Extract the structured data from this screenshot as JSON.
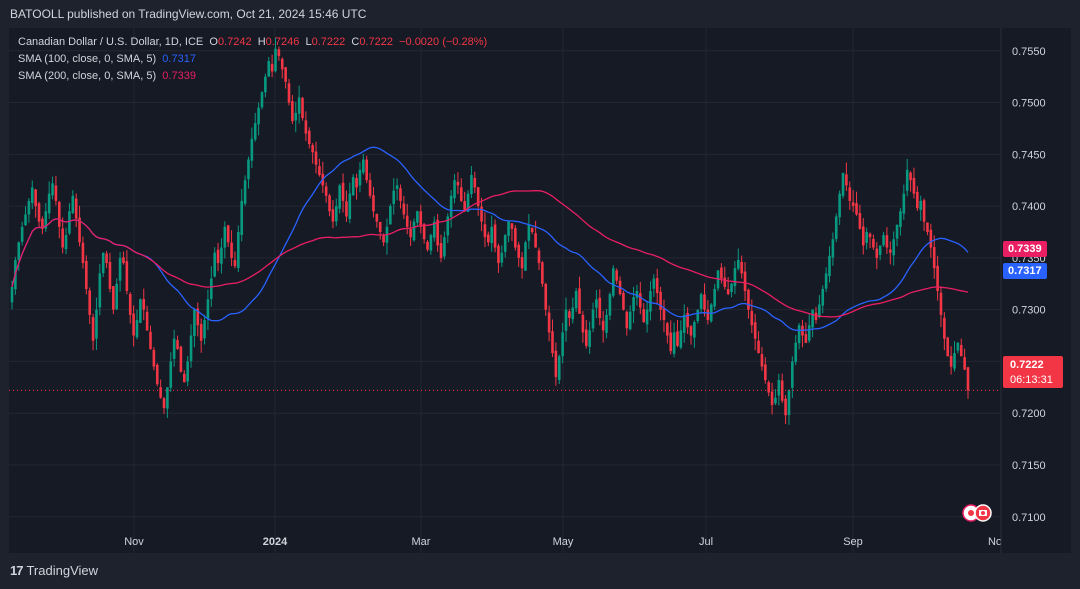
{
  "header": {
    "publisher_text": "BATOOLL published on TradingView.com, Oct 21, 2024 15:46 UTC"
  },
  "legend": {
    "symbol": "Canadian Dollar / U.S. Dollar, 1D, ICE",
    "o_label": "O",
    "o_value": "0.7242",
    "h_label": "H",
    "h_value": "0.7246",
    "l_label": "L",
    "l_value": "0.7222",
    "c_label": "C",
    "c_value": "0.7222",
    "change": "−0.0020 (−0.28%)",
    "sma100_label": "SMA (100, close, 0, SMA, 5)",
    "sma100_value": "0.7317",
    "sma200_label": "SMA (200, close, 0, SMA, 5)",
    "sma200_value": "0.7339"
  },
  "badges": {
    "sma200": "0.7339",
    "sma100": "0.7317",
    "current_price": "0.7222",
    "countdown": "06:13:31"
  },
  "footer": {
    "logo_text": "TradingView"
  },
  "colors": {
    "up": "#089981",
    "down": "#f23645",
    "sma100": "#2962ff",
    "sma200": "#e91e63",
    "background": "#161a25"
  },
  "chart_data": {
    "type": "candlestick",
    "interval": "1D",
    "ylim": [
      0.7065,
      0.7572
    ],
    "y_ticks": [
      "0.7550",
      "0.7500",
      "0.7450",
      "0.7400",
      "0.7350",
      "0.7300",
      "0.7250",
      "0.7200",
      "0.7150",
      "0.7100"
    ],
    "x_ticks": [
      "Nov",
      "2024",
      "Mar",
      "May",
      "Jul",
      "Sep",
      "No"
    ],
    "grid": true,
    "closes": [
      0.7322,
      0.7348,
      0.7365,
      0.738,
      0.7392,
      0.7405,
      0.7418,
      0.74,
      0.7385,
      0.7378,
      0.7395,
      0.7412,
      0.7422,
      0.7405,
      0.738,
      0.736,
      0.7372,
      0.7395,
      0.741,
      0.7388,
      0.7365,
      0.7345,
      0.732,
      0.7295,
      0.727,
      0.73,
      0.7335,
      0.7355,
      0.7345,
      0.732,
      0.73,
      0.7325,
      0.735,
      0.7345,
      0.7318,
      0.7295,
      0.7275,
      0.729,
      0.731,
      0.73,
      0.728,
      0.7262,
      0.7245,
      0.7228,
      0.7215,
      0.7205,
      0.7225,
      0.725,
      0.7272,
      0.7262,
      0.724,
      0.723,
      0.725,
      0.7275,
      0.73,
      0.7285,
      0.727,
      0.729,
      0.731,
      0.733,
      0.7355,
      0.7345,
      0.736,
      0.738,
      0.7365,
      0.735,
      0.7342,
      0.7375,
      0.7405,
      0.7425,
      0.7445,
      0.7465,
      0.748,
      0.7495,
      0.751,
      0.7525,
      0.754,
      0.753,
      0.7552,
      0.7545,
      0.7532,
      0.752,
      0.75,
      0.7482,
      0.749,
      0.7505,
      0.7485,
      0.747,
      0.746,
      0.7452,
      0.744,
      0.743,
      0.742,
      0.741,
      0.7395,
      0.7385,
      0.74,
      0.742,
      0.7405,
      0.739,
      0.7412,
      0.7428,
      0.7418,
      0.7435,
      0.7445,
      0.7425,
      0.741,
      0.7395,
      0.7385,
      0.7375,
      0.7365,
      0.738,
      0.74,
      0.7415,
      0.742,
      0.7405,
      0.7392,
      0.738,
      0.737,
      0.7385,
      0.7395,
      0.738,
      0.7368,
      0.7358,
      0.7372,
      0.7385,
      0.7362,
      0.735,
      0.737,
      0.739,
      0.741,
      0.7425,
      0.742,
      0.7405,
      0.7395,
      0.7412,
      0.743,
      0.7418,
      0.74,
      0.7385,
      0.737,
      0.7365,
      0.738,
      0.736,
      0.7345,
      0.7355,
      0.7372,
      0.7385,
      0.7378,
      0.736,
      0.735,
      0.734,
      0.7365,
      0.7382,
      0.7375,
      0.736,
      0.7345,
      0.7325,
      0.73,
      0.7278,
      0.7258,
      0.7235,
      0.7255,
      0.7278,
      0.73,
      0.7292,
      0.7302,
      0.7318,
      0.7296,
      0.7278,
      0.7265,
      0.728,
      0.73,
      0.731,
      0.7292,
      0.728,
      0.7295,
      0.7315,
      0.734,
      0.7328,
      0.7315,
      0.73,
      0.7282,
      0.7298,
      0.7312,
      0.7318,
      0.7302,
      0.7288,
      0.73,
      0.7318,
      0.733,
      0.7316,
      0.73,
      0.729,
      0.7275,
      0.726,
      0.7278,
      0.7265,
      0.728,
      0.7295,
      0.7283,
      0.7275,
      0.7288,
      0.73,
      0.7315,
      0.73,
      0.729,
      0.7305,
      0.732,
      0.7338,
      0.733,
      0.7322,
      0.7315,
      0.7325,
      0.734,
      0.7348,
      0.7335,
      0.7318,
      0.73,
      0.7285,
      0.7272,
      0.7258,
      0.7245,
      0.7232,
      0.722,
      0.7208,
      0.7215,
      0.7232,
      0.7212,
      0.7198,
      0.7222,
      0.725,
      0.7268,
      0.7285,
      0.7275,
      0.7268,
      0.7285,
      0.73,
      0.729,
      0.7305,
      0.732,
      0.7335,
      0.7352,
      0.7368,
      0.739,
      0.7412,
      0.7432,
      0.742,
      0.7405,
      0.74,
      0.7392,
      0.7378,
      0.7362,
      0.7375,
      0.737,
      0.736,
      0.735,
      0.7362,
      0.7372,
      0.736,
      0.7355,
      0.7368,
      0.7382,
      0.7395,
      0.7412,
      0.7435,
      0.7425,
      0.7412,
      0.7398,
      0.7405,
      0.7385,
      0.7375,
      0.736,
      0.734,
      0.7318,
      0.7295,
      0.7272,
      0.7255,
      0.7245,
      0.7258,
      0.7268,
      0.7255,
      0.7242,
      0.7222
    ],
    "sma100_value": 0.7317,
    "sma200_value": 0.7339,
    "last_price": 0.7222
  }
}
